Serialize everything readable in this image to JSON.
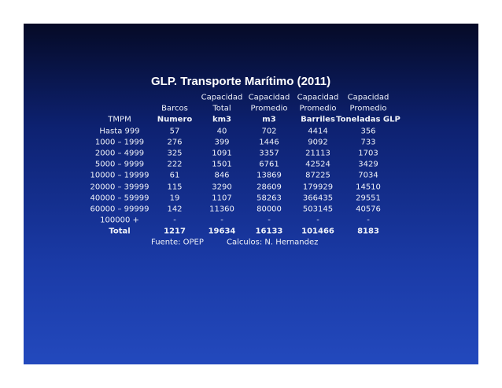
{
  "title": "GLP. Transporte Marítimo (2011)",
  "table": {
    "columns": [
      {
        "lines": [
          "TMPM"
        ]
      },
      {
        "lines": [
          "Barcos",
          "Numero"
        ]
      },
      {
        "lines": [
          "Capacidad",
          "Total",
          "km3"
        ]
      },
      {
        "lines": [
          "Capacidad",
          "Promedio",
          "m3"
        ]
      },
      {
        "lines": [
          "Capacidad",
          "Promedio",
          "Barriles"
        ]
      },
      {
        "lines": [
          "Capacidad",
          "Promedio",
          "Toneladas GLP"
        ]
      }
    ],
    "rows": [
      [
        "Hasta 999",
        57,
        40,
        702,
        4414,
        356
      ],
      [
        "1000 – 1999",
        276,
        399,
        1446,
        9092,
        733
      ],
      [
        "2000 – 4999",
        325,
        1091,
        3357,
        21113,
        1703
      ],
      [
        "5000 – 9999",
        222,
        1501,
        6761,
        42524,
        3429
      ],
      [
        "10000 – 19999",
        61,
        846,
        13869,
        87225,
        7034
      ],
      [
        "20000 – 39999",
        115,
        3290,
        28609,
        179929,
        14510
      ],
      [
        "40000 – 59999",
        19,
        1107,
        58263,
        366435,
        29551
      ],
      [
        "60000 – 99999",
        142,
        11360,
        80000,
        503145,
        40576
      ],
      [
        "100000 +",
        "-",
        "-",
        "-",
        "-",
        "-"
      ]
    ],
    "total": [
      "Total",
      1217,
      19634,
      16133,
      101466,
      8183
    ]
  },
  "footer": {
    "source": "Fuente: OPEP",
    "credit": "Calculos: N. Hernandez"
  }
}
